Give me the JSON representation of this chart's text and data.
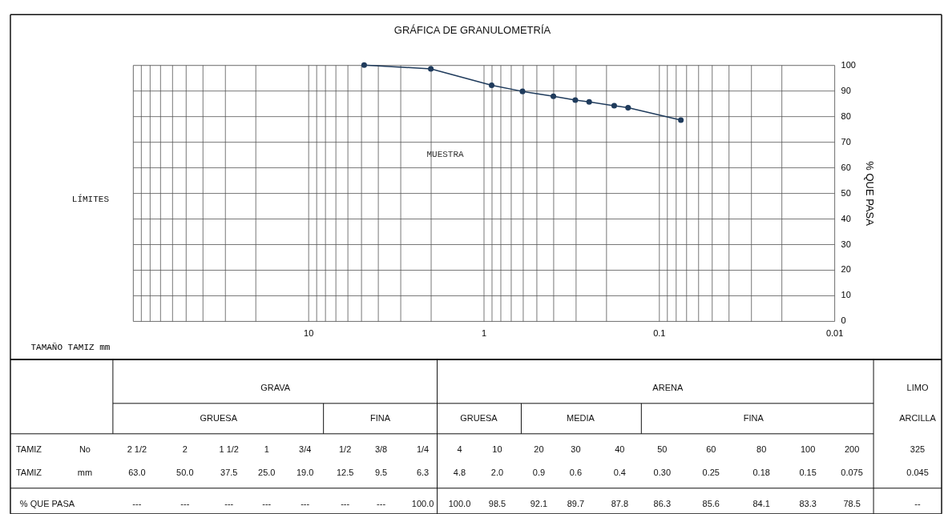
{
  "chart_data": {
    "type": "line",
    "title": "GRÁFICA DE GRANULOMETRÍA",
    "xlabel": "TAMAÑO TAMIZ mm",
    "ylabel": "% QUE PASA",
    "x": [
      4.8,
      2.0,
      0.9,
      0.6,
      0.4,
      0.3,
      0.25,
      0.18,
      0.15,
      0.075
    ],
    "series": [
      {
        "name": "MUESTRA",
        "color": "#1f3b5c",
        "values": [
          100.0,
          98.5,
          92.1,
          89.7,
          87.8,
          86.3,
          85.6,
          84.1,
          83.3,
          78.5
        ]
      }
    ],
    "log": "x",
    "xlim": [
      100,
      0.01
    ],
    "ylim": [
      0,
      100
    ],
    "xticks": [
      {
        "value": 100,
        "label": null
      },
      {
        "value": 90,
        "label": null
      },
      {
        "value": 80,
        "label": null
      },
      {
        "value": 70,
        "label": null
      },
      {
        "value": 60,
        "label": null
      },
      {
        "value": 50,
        "label": null
      },
      {
        "value": 40,
        "label": null
      },
      {
        "value": 30,
        "label": null
      },
      {
        "value": 20,
        "label": null
      },
      {
        "value": 10,
        "label": "10"
      },
      {
        "value": 9,
        "label": null
      },
      {
        "value": 8,
        "label": null
      },
      {
        "value": 7,
        "label": null
      },
      {
        "value": 6,
        "label": null
      },
      {
        "value": 5,
        "label": null
      },
      {
        "value": 4,
        "label": null
      },
      {
        "value": 3,
        "label": null
      },
      {
        "value": 2,
        "label": null
      },
      {
        "value": 1,
        "label": "1"
      },
      {
        "value": 0.9,
        "label": null
      },
      {
        "value": 0.8,
        "label": null
      },
      {
        "value": 0.7,
        "label": null
      },
      {
        "value": 0.6,
        "label": null
      },
      {
        "value": 0.5,
        "label": null
      },
      {
        "value": 0.4,
        "label": null
      },
      {
        "value": 0.3,
        "label": null
      },
      {
        "value": 0.2,
        "label": null
      },
      {
        "value": 0.1,
        "label": "0.1"
      },
      {
        "value": 0.09,
        "label": null
      },
      {
        "value": 0.08,
        "label": null
      },
      {
        "value": 0.07,
        "label": null
      },
      {
        "value": 0.06,
        "label": null
      },
      {
        "value": 0.05,
        "label": null
      },
      {
        "value": 0.04,
        "label": null
      },
      {
        "value": 0.03,
        "label": null
      },
      {
        "value": 0.02,
        "label": null
      },
      {
        "value": 0.01,
        "label": "0.01"
      }
    ],
    "yticks": [
      0,
      10,
      20,
      30,
      40,
      50,
      60,
      70,
      80,
      90,
      100
    ],
    "grid": true,
    "marker": "circle",
    "line_style": "solid",
    "annotations": [
      "LÍMITES",
      "GRAVA",
      "ARENA",
      "LIMO",
      "GRUESA",
      "FINA",
      "GRUESA",
      "MEDIA",
      "FINA",
      "ARCILLA",
      "TAMIZ",
      "No",
      "TAMIZ",
      "mm",
      "% QUE PASA",
      "2 1/2",
      "2",
      "1 1/2",
      "1",
      "3/4",
      "1/2",
      "3/8",
      "1/4",
      "4",
      "10",
      "20",
      "30",
      "40",
      "50",
      "60",
      "80",
      "100",
      "200",
      "325",
      "63.0",
      "50.0",
      "37.5",
      "25.0",
      "19.0",
      "12.5",
      "9.5",
      "6.3",
      "4.8",
      "2.0",
      "0.9",
      "0.6",
      "0.4",
      "0.30",
      "0.25",
      "0.18",
      "0.15",
      "0.075",
      "0.045",
      "---",
      "---",
      "---",
      "---",
      "---",
      "---",
      "---",
      "100.0",
      "100.0",
      "98.5",
      "92.1",
      "89.7",
      "87.8",
      "86.3",
      "85.6",
      "84.1",
      "83.3",
      "78.5",
      "--"
    ]
  }
}
